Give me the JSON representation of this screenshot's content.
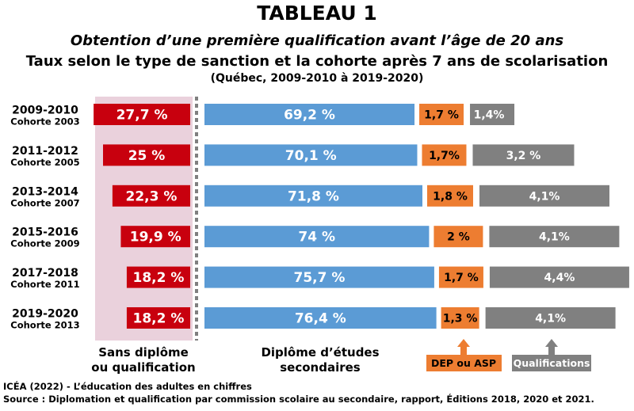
{
  "header": {
    "title": "TABLEAU 1",
    "subtitle1": "Obtention d’une première qualification avant l’âge de 20 ans",
    "subtitle2": "Taux selon le type de sanction et la cohorte après 7 ans de scolarisation",
    "subtitle3": "(Québec, 2009-2010 à 2019-2020)"
  },
  "footer": {
    "line1": "ICÉA (2022) - L’éducation des adultes en chiffres",
    "line2": "Source : Diplomation et qualification par commission scolaire au secondaire, rapport, Éditions 2018, 2020 et 2021."
  },
  "colors": {
    "sans_diplome": "#c8000e",
    "des": "#5b9bd5",
    "dep_asp": "#ed7d31",
    "qualifications": "#808080",
    "left_panel": "#ead1dc",
    "divider": "#7f7f7f"
  },
  "chart_data": {
    "type": "bar",
    "orientation": "horizontal",
    "stacked": "diverging",
    "categories": [
      {
        "period": "2009-2010",
        "cohort": "Cohorte 2003"
      },
      {
        "period": "2011-2012",
        "cohort": "Cohorte 2005"
      },
      {
        "period": "2013-2014",
        "cohort": "Cohorte 2007"
      },
      {
        "period": "2015-2016",
        "cohort": "Cohorte 2009"
      },
      {
        "period": "2017-2018",
        "cohort": "Cohorte 2011"
      },
      {
        "period": "2019-2020",
        "cohort": "Cohorte 2013"
      }
    ],
    "series": [
      {
        "key": "sans_diplome",
        "name": "Sans diplôme ou qualification",
        "side": "left",
        "values": [
          27.7,
          25,
          22.3,
          19.9,
          18.2,
          18.2
        ],
        "labels": [
          "27,7 %",
          "25 %",
          "22,3 %",
          "19,9 %",
          "18,2 %",
          "18,2 %"
        ]
      },
      {
        "key": "des",
        "name": "Diplôme d’études secondaires",
        "side": "right",
        "values": [
          69.2,
          70.1,
          71.8,
          74,
          75.7,
          76.4
        ],
        "labels": [
          "69,2 %",
          "70,1 %",
          "71,8 %",
          "74 %",
          "75,7 %",
          "76,4 %"
        ]
      },
      {
        "key": "dep_asp",
        "name": "DEP ou ASP",
        "side": "right",
        "values": [
          1.7,
          1.7,
          1.8,
          2,
          1.7,
          1.3
        ],
        "labels": [
          "1,7 %",
          "1,7%",
          "1,8 %",
          "2 %",
          "1,7 %",
          "1,3 %"
        ]
      },
      {
        "key": "qualifications",
        "name": "Qualifications",
        "side": "right",
        "values": [
          1.4,
          3.2,
          4.1,
          4.1,
          4.4,
          4.1
        ],
        "labels": [
          "1,4%",
          "3,2 %",
          "4,1%",
          "4,1%",
          "4,4%",
          "4,1%"
        ]
      }
    ],
    "legend": {
      "sans_diplome_line1": "Sans diplôme",
      "sans_diplome_line2": "ou qualification",
      "des_line1": "Diplôme d’études",
      "des_line2": "secondaires",
      "dep_asp": "DEP ou ASP",
      "qualifications": "Qualifications"
    }
  }
}
